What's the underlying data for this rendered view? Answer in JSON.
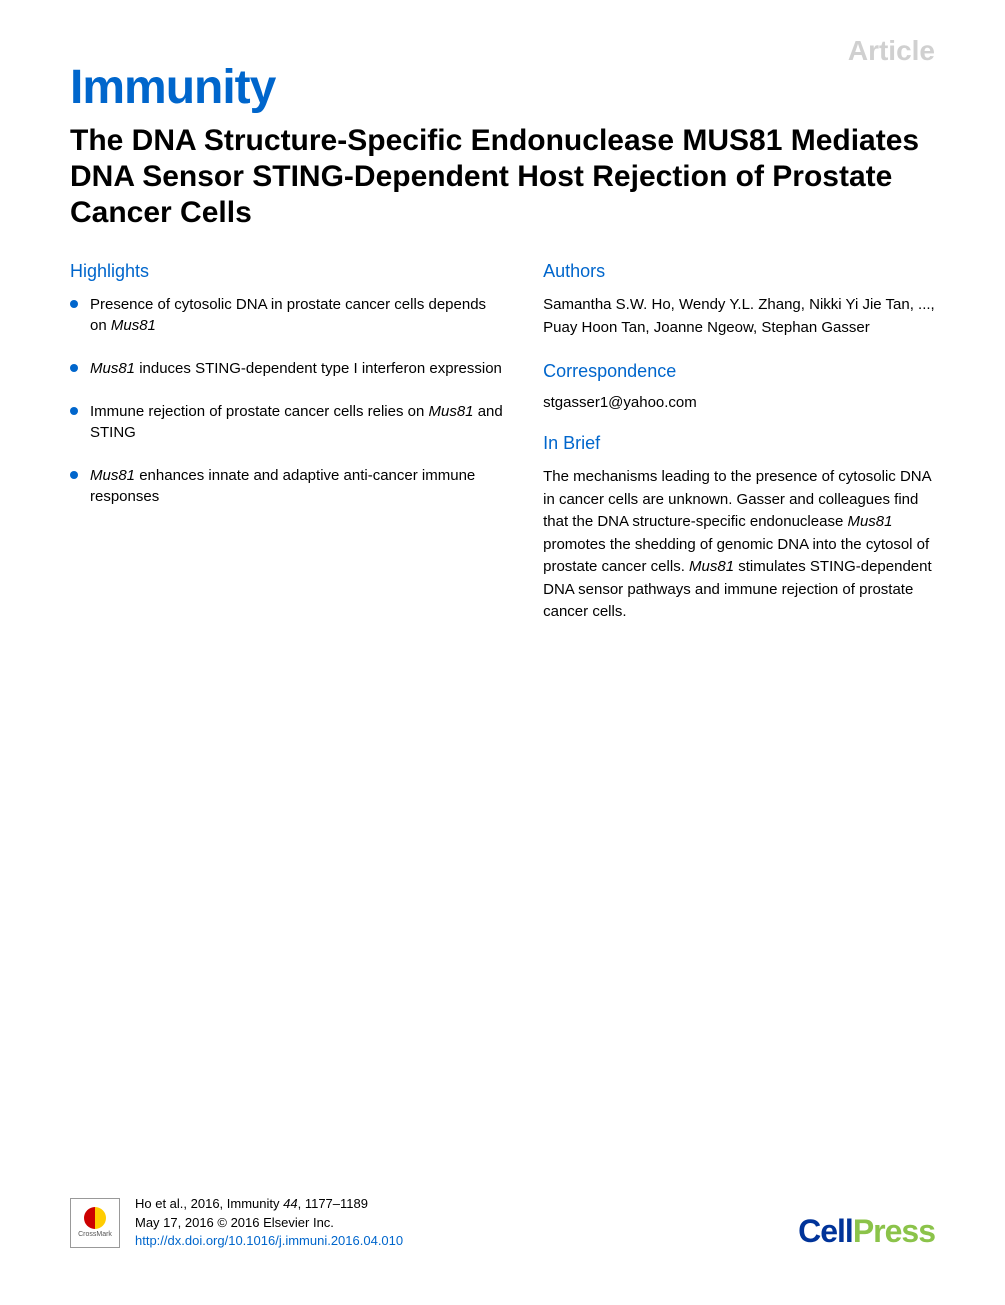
{
  "article_label": "Article",
  "journal": "Immunity",
  "title": "The DNA Structure-Specific Endonuclease MUS81 Mediates DNA Sensor STING-Dependent Host Rejection of Prostate Cancer Cells",
  "highlights": {
    "heading": "Highlights",
    "items": [
      {
        "pre": "Presence of cytosolic DNA in prostate cancer cells depends on ",
        "it": "Mus81",
        "post": ""
      },
      {
        "pre": "",
        "it": "Mus81",
        "post": " induces STING-dependent type I interferon expression"
      },
      {
        "pre": "Immune rejection of prostate cancer cells relies on ",
        "it": "Mus81",
        "post": " and STING"
      },
      {
        "pre": "",
        "it": "Mus81",
        "post": " enhances innate and adaptive anti-cancer immune responses"
      }
    ]
  },
  "authors": {
    "heading": "Authors",
    "text": "Samantha S.W. Ho, Wendy Y.L. Zhang, Nikki Yi Jie Tan, ..., Puay Hoon Tan, Joanne Ngeow, Stephan Gasser"
  },
  "correspondence": {
    "heading": "Correspondence",
    "email": "stgasser1@yahoo.com"
  },
  "inbrief": {
    "heading": "In Brief",
    "p1": "The mechanisms leading to the presence of cytosolic DNA in cancer cells are unknown. Gasser and colleagues find that the DNA structure-specific endonuclease ",
    "it1": "Mus81",
    "p2": " promotes the shedding of genomic DNA into the cytosol of prostate cancer cells. ",
    "it2": "Mus81",
    "p3": " stimulates STING-dependent DNA sensor pathways and immune rejection of prostate cancer cells."
  },
  "footer": {
    "crossmark_label": "CrossMark",
    "citation_line1_a": "Ho et al., 2016, Immunity ",
    "citation_line1_vol": "44",
    "citation_line1_b": ", 1177–1189",
    "citation_line2": "May 17, 2016 © 2016 Elsevier Inc.",
    "citation_line3": "http://dx.doi.org/10.1016/j.immuni.2016.04.010",
    "cellpress_cell": "Cell",
    "cellpress_press": "Press"
  }
}
